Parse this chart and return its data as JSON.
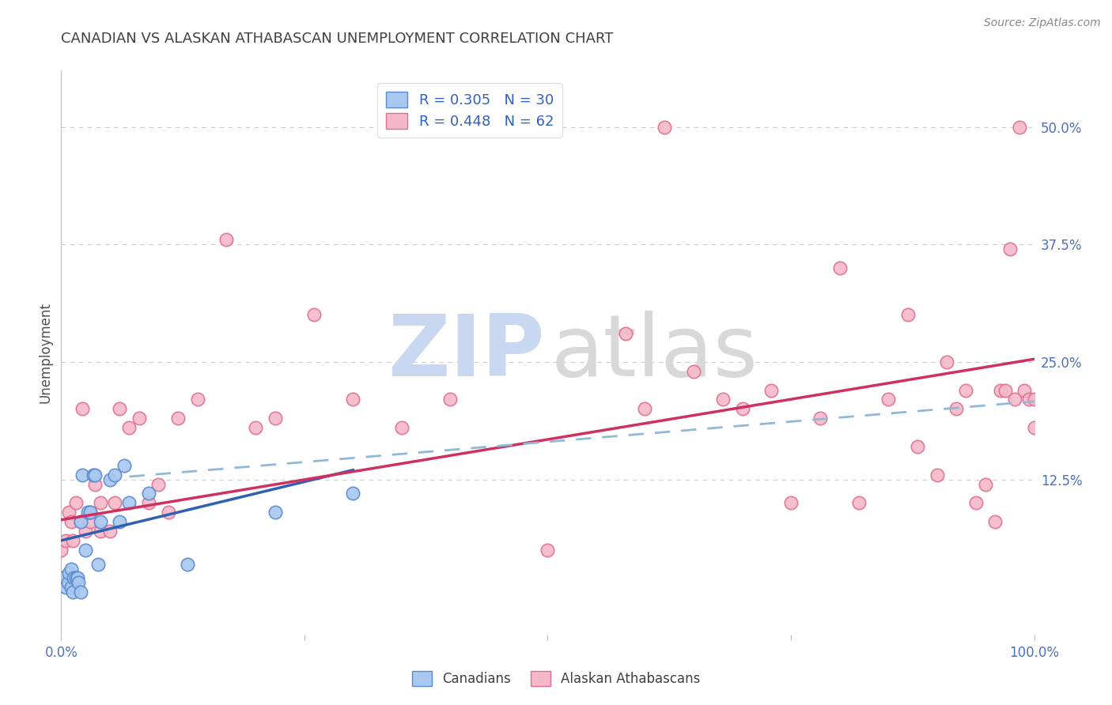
{
  "title": "CANADIAN VS ALASKAN ATHABASCAN UNEMPLOYMENT CORRELATION CHART",
  "source": "Source: ZipAtlas.com",
  "ylabel": "Unemployment",
  "yticks": [
    0.0,
    0.125,
    0.25,
    0.375,
    0.5
  ],
  "ytick_labels": [
    "",
    "12.5%",
    "25.0%",
    "37.5%",
    "50.0%"
  ],
  "xlim": [
    0.0,
    1.0
  ],
  "ylim": [
    -0.04,
    0.56
  ],
  "legend_r1": "R = 0.305   N = 30",
  "legend_r2": "R = 0.448   N = 62",
  "canadians_x": [
    0.0,
    0.005,
    0.007,
    0.008,
    0.01,
    0.01,
    0.012,
    0.013,
    0.015,
    0.017,
    0.018,
    0.02,
    0.02,
    0.022,
    0.025,
    0.027,
    0.03,
    0.033,
    0.035,
    0.038,
    0.04,
    0.05,
    0.055,
    0.06,
    0.065,
    0.07,
    0.09,
    0.13,
    0.22,
    0.3
  ],
  "canadians_y": [
    0.02,
    0.01,
    0.015,
    0.025,
    0.01,
    0.03,
    0.005,
    0.02,
    0.02,
    0.02,
    0.015,
    0.005,
    0.08,
    0.13,
    0.05,
    0.09,
    0.09,
    0.13,
    0.13,
    0.035,
    0.08,
    0.125,
    0.13,
    0.08,
    0.14,
    0.1,
    0.11,
    0.035,
    0.09,
    0.11
  ],
  "alaskan_x": [
    0.0,
    0.005,
    0.008,
    0.01,
    0.012,
    0.015,
    0.02,
    0.022,
    0.025,
    0.03,
    0.03,
    0.035,
    0.04,
    0.04,
    0.05,
    0.055,
    0.06,
    0.07,
    0.08,
    0.09,
    0.1,
    0.11,
    0.12,
    0.14,
    0.17,
    0.2,
    0.22,
    0.26,
    0.3,
    0.35,
    0.4,
    0.5,
    0.58,
    0.6,
    0.62,
    0.65,
    0.68,
    0.7,
    0.73,
    0.75,
    0.78,
    0.8,
    0.82,
    0.85,
    0.87,
    0.88,
    0.9,
    0.91,
    0.92,
    0.93,
    0.94,
    0.95,
    0.96,
    0.965,
    0.97,
    0.975,
    0.98,
    0.985,
    0.99,
    0.995,
    1.0,
    1.0
  ],
  "alaskan_y": [
    0.05,
    0.06,
    0.09,
    0.08,
    0.06,
    0.1,
    0.08,
    0.2,
    0.07,
    0.08,
    0.09,
    0.12,
    0.07,
    0.1,
    0.07,
    0.1,
    0.2,
    0.18,
    0.19,
    0.1,
    0.12,
    0.09,
    0.19,
    0.21,
    0.38,
    0.18,
    0.19,
    0.3,
    0.21,
    0.18,
    0.21,
    0.05,
    0.28,
    0.2,
    0.5,
    0.24,
    0.21,
    0.2,
    0.22,
    0.1,
    0.19,
    0.35,
    0.1,
    0.21,
    0.3,
    0.16,
    0.13,
    0.25,
    0.2,
    0.22,
    0.1,
    0.12,
    0.08,
    0.22,
    0.22,
    0.37,
    0.21,
    0.5,
    0.22,
    0.21,
    0.21,
    0.18
  ],
  "blue_line_x": [
    0.0,
    0.3
  ],
  "blue_line_y": [
    0.06,
    0.135
  ],
  "pink_line_x": [
    0.0,
    1.0
  ],
  "pink_line_y": [
    0.082,
    0.253
  ],
  "dashed_line_x": [
    0.07,
    1.0
  ],
  "dashed_line_y": [
    0.128,
    0.208
  ],
  "canadian_color": "#a8c8f0",
  "canadian_edge": "#5a8acc",
  "alaskan_color": "#f5b8c8",
  "alaskan_edge": "#e07090",
  "blue_line_color": "#3060b0",
  "pink_line_color": "#d03060",
  "dashed_color": "#90b8d8",
  "bg_color": "#ffffff",
  "grid_color": "#cccccc",
  "title_color": "#404040",
  "yticklabel_color": "#4a70c0",
  "xticklabel_color": "#4a70c0",
  "legend_text_color": "#3060c0",
  "source_color": "#888888",
  "watermark_zip_color": "#c8d8f0",
  "watermark_atlas_color": "#d8d8d8"
}
